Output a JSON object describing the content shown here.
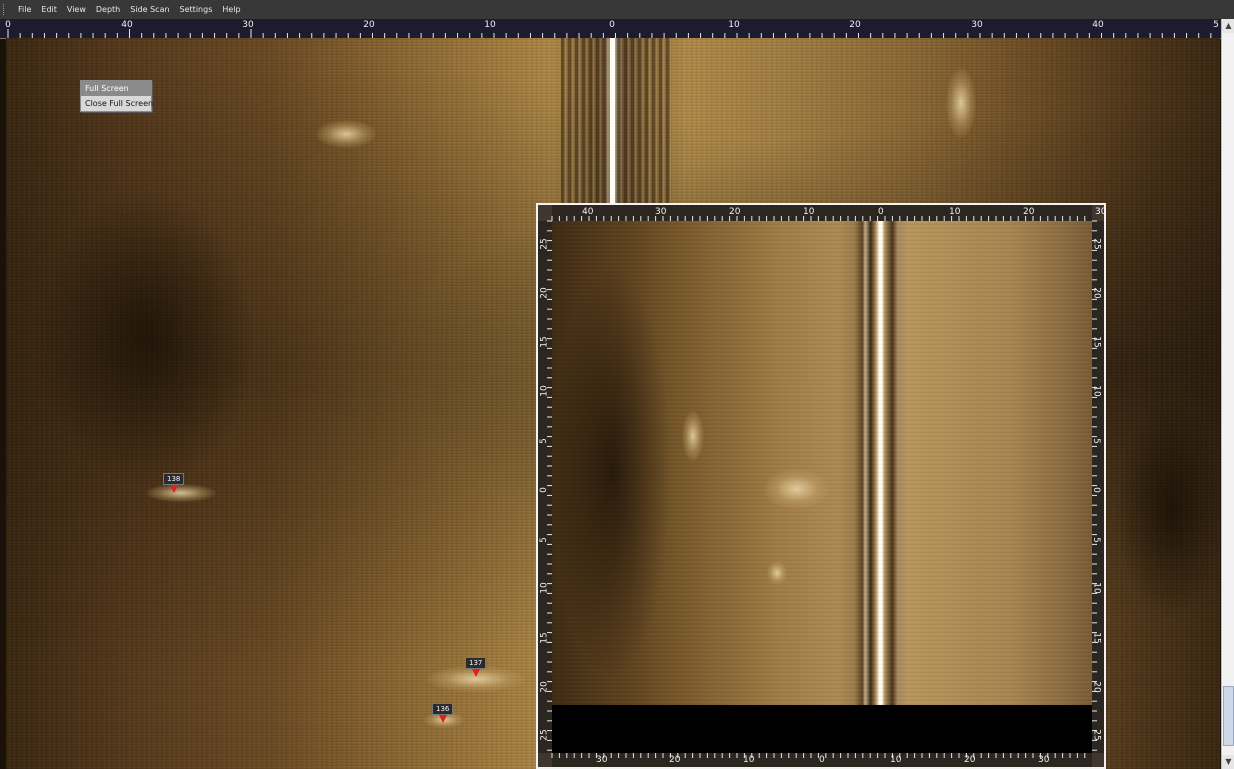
{
  "menu": {
    "items": [
      "File",
      "Edit",
      "View",
      "Depth",
      "Side Scan",
      "Settings",
      "Help"
    ]
  },
  "ruler_top": {
    "labels": [
      "0",
      "40",
      "30",
      "20",
      "10",
      "0",
      "10",
      "20",
      "30",
      "40",
      "5"
    ]
  },
  "context_menu": {
    "items": [
      "Full Screen",
      "Close Full Screen"
    ],
    "highlighted": "Full Screen"
  },
  "markers": [
    {
      "label": "138"
    },
    {
      "label": "137"
    },
    {
      "label": "136"
    }
  ],
  "inset": {
    "top_labels": [
      "40",
      "30",
      "20",
      "10",
      "0",
      "10",
      "20",
      "30"
    ],
    "bottom_labels": [
      "30",
      "20",
      "10",
      "0",
      "10",
      "20",
      "30"
    ],
    "left_labels": [
      "25",
      "20",
      "15",
      "10",
      "5",
      "0",
      "5",
      "10",
      "15",
      "20",
      "25"
    ],
    "right_labels": [
      "25",
      "20",
      "15",
      "10",
      "5",
      "0",
      "5",
      "10",
      "15",
      "20",
      "25"
    ]
  },
  "colors": {
    "menubar": "#383838",
    "sonar_mid": "#a07a3c",
    "marker_pin": "#e02020",
    "centerline": "#fffdf3"
  },
  "icons": {
    "scroll_up": "chevron-up-icon",
    "scroll_down": "chevron-down-icon",
    "menu_grip": "grip-icon"
  }
}
